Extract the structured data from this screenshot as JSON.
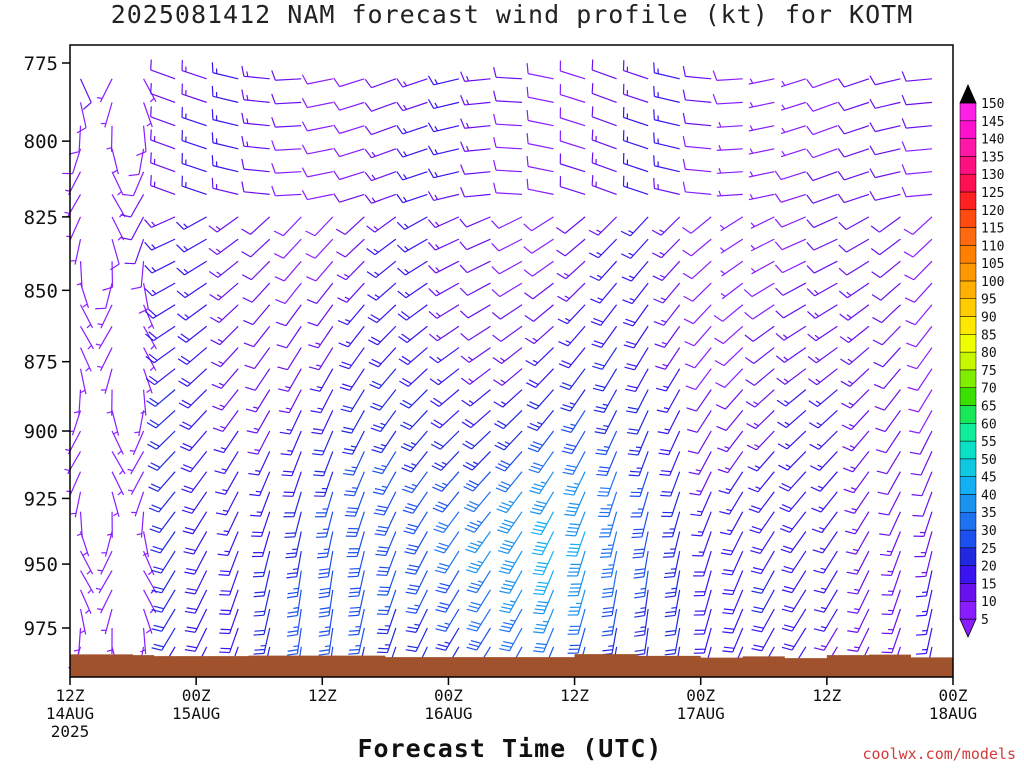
{
  "title": "2025081412 NAM forecast wind profile (kt) for KOTM",
  "credit": "coolwx.com/models",
  "chart_data": {
    "type": "wind-barb-profile",
    "xlabel": "Forecast Time (UTC)",
    "ylabel": "",
    "x_range_hours": [
      0,
      84
    ],
    "y_range_hpa": [
      775,
      990
    ],
    "y_ticks": [
      775,
      800,
      825,
      850,
      875,
      900,
      925,
      950,
      975
    ],
    "x_ticks": [
      {
        "hour": 0,
        "label": [
          "12Z",
          "14AUG",
          "2025"
        ]
      },
      {
        "hour": 12,
        "label": [
          "00Z",
          "15AUG"
        ]
      },
      {
        "hour": 24,
        "label": [
          "12Z"
        ]
      },
      {
        "hour": 36,
        "label": [
          "00Z",
          "16AUG"
        ]
      },
      {
        "hour": 48,
        "label": [
          "12Z"
        ]
      },
      {
        "hour": 60,
        "label": [
          "00Z",
          "17AUG"
        ]
      },
      {
        "hour": 72,
        "label": [
          "12Z"
        ]
      },
      {
        "hour": 84,
        "label": [
          "00Z",
          "18AUG"
        ]
      }
    ],
    "colorbar": {
      "levels": [
        5,
        10,
        15,
        20,
        25,
        30,
        35,
        40,
        45,
        50,
        55,
        60,
        65,
        70,
        75,
        80,
        85,
        90,
        95,
        100,
        105,
        110,
        115,
        120,
        125,
        130,
        135,
        140,
        145,
        150
      ],
      "colors": [
        "#8a1dff",
        "#6a10ee",
        "#3a14f0",
        "#2028e0",
        "#1b50ee",
        "#1e72f2",
        "#1a92f0",
        "#14aef4",
        "#10c8e0",
        "#0ae0c8",
        "#10ee9a",
        "#18e858",
        "#3ae000",
        "#80ee00",
        "#c6f800",
        "#eeff00",
        "#ffe800",
        "#ffcc00",
        "#ffb000",
        "#ff9800",
        "#ff8000",
        "#ff6a10",
        "#ff4a10",
        "#ff2020",
        "#ff1050",
        "#ff1080",
        "#ff18a8",
        "#ff10cc",
        "#ff20e8",
        "#ff40ff"
      ],
      "extend": "both"
    },
    "terrain": {
      "color": "#a0522d",
      "surface_pressure_hpa": [
        {
          "hour": 0,
          "p": 985.5
        },
        {
          "hour": 6,
          "p": 985.8
        },
        {
          "hour": 8,
          "p": 986.2
        },
        {
          "hour": 17,
          "p": 986.0
        },
        {
          "hour": 30,
          "p": 986.6
        },
        {
          "hour": 48,
          "p": 985.4
        },
        {
          "hour": 54,
          "p": 986.1
        },
        {
          "hour": 60,
          "p": 986.8
        },
        {
          "hour": 64,
          "p": 986.3
        },
        {
          "hour": 68,
          "p": 987.0
        },
        {
          "hour": 72,
          "p": 985.8
        },
        {
          "hour": 76,
          "p": 985.6
        },
        {
          "hour": 80,
          "p": 986.7
        },
        {
          "hour": 84,
          "p": 986.7
        }
      ]
    },
    "wind_description": "Southerly light winds early; veering to southwesterly 15-35 kt from 15AUG 06Z onward with strongest winds (30-40 kt) near 925-950 hPa around 16AUG 06Z-18Z; weaker westerly/northwesterly flow aloft near 775-850 hPa.",
    "wind_speed_range_kt": [
      0,
      40
    ]
  }
}
